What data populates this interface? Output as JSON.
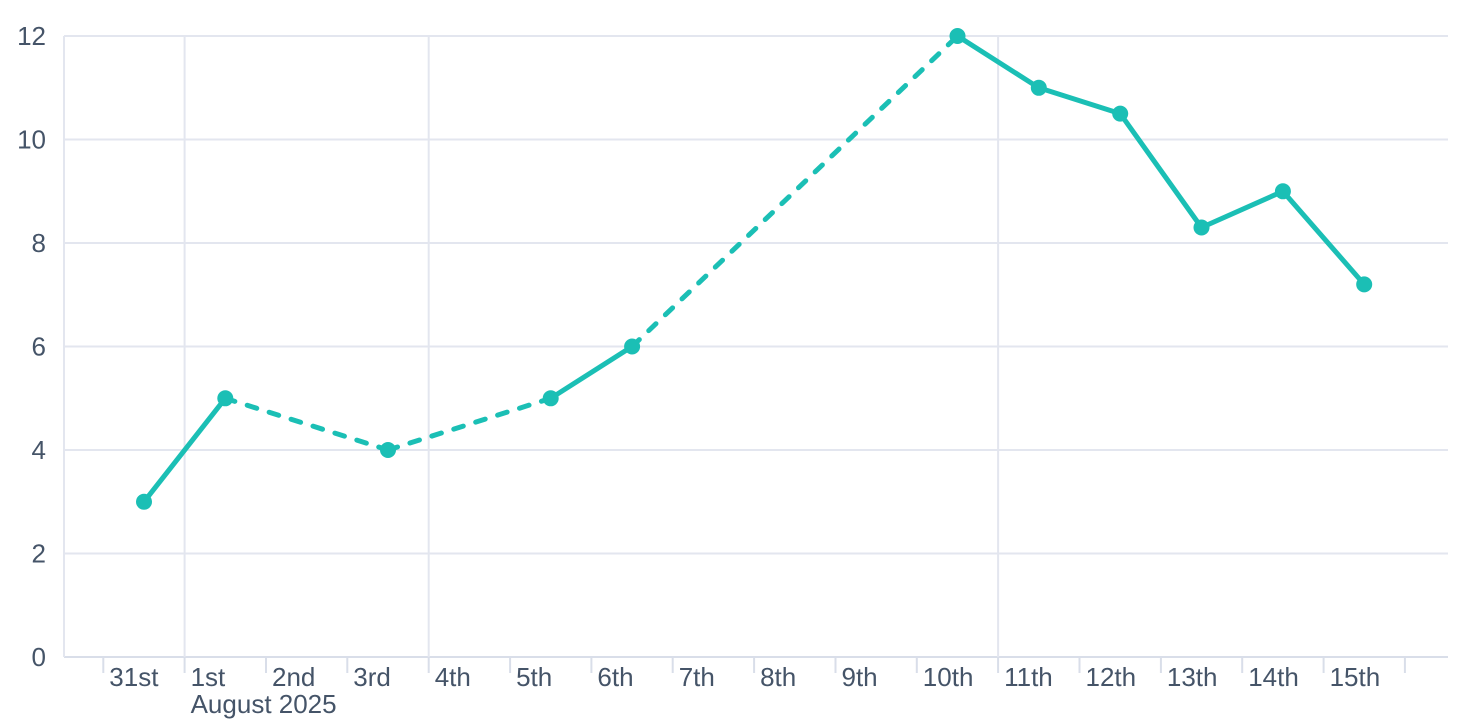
{
  "chart_data": {
    "type": "line",
    "title": "",
    "legend": "none",
    "grid": "on",
    "background": "#FFFFFF",
    "colors": {
      "line": "#1BBFB5",
      "grid": "#E3E6EF",
      "axis": "#D9DEE9",
      "text": "#455468"
    },
    "y_axis": {
      "min": 0,
      "max": 12,
      "tick_step": 2,
      "tick_labels": [
        "0",
        "2",
        "4",
        "6",
        "8",
        "10",
        "12"
      ]
    },
    "x_axis": {
      "tick_labels": [
        "31st",
        "1st",
        "2nd",
        "3rd",
        "4th",
        "5th",
        "6th",
        "7th",
        "8th",
        "9th",
        "10th",
        "11th",
        "12th",
        "13th",
        "14th",
        "15th"
      ],
      "month_sublabel": "August 2025",
      "month_sublabel_anchor": "1st",
      "gridlines_at": [
        "1st",
        "4th",
        "11th"
      ],
      "trailing_unlabeled_tick": true
    },
    "series": [
      {
        "name": "series-1",
        "color": "#1BBFB5",
        "marker": "circle",
        "points": [
          {
            "day": "31st",
            "value": 3
          },
          {
            "day": "1st",
            "value": 5
          },
          {
            "day": "3rd",
            "value": 4
          },
          {
            "day": "5th",
            "value": 5
          },
          {
            "day": "6th",
            "value": 6
          },
          {
            "day": "10th",
            "value": 12
          },
          {
            "day": "11th",
            "value": 11
          },
          {
            "day": "12th",
            "value": 10.5
          },
          {
            "day": "13th",
            "value": 8.3
          },
          {
            "day": "14th",
            "value": 9
          },
          {
            "day": "15th",
            "value": 7.2
          }
        ],
        "segments": [
          {
            "from": "31st",
            "to": "1st",
            "dashed": false
          },
          {
            "from": "1st",
            "to": "3rd",
            "dashed": true
          },
          {
            "from": "3rd",
            "to": "5th",
            "dashed": true
          },
          {
            "from": "5th",
            "to": "6th",
            "dashed": false
          },
          {
            "from": "6th",
            "to": "10th",
            "dashed": true
          },
          {
            "from": "10th",
            "to": "15th",
            "dashed": false
          }
        ]
      }
    ]
  }
}
